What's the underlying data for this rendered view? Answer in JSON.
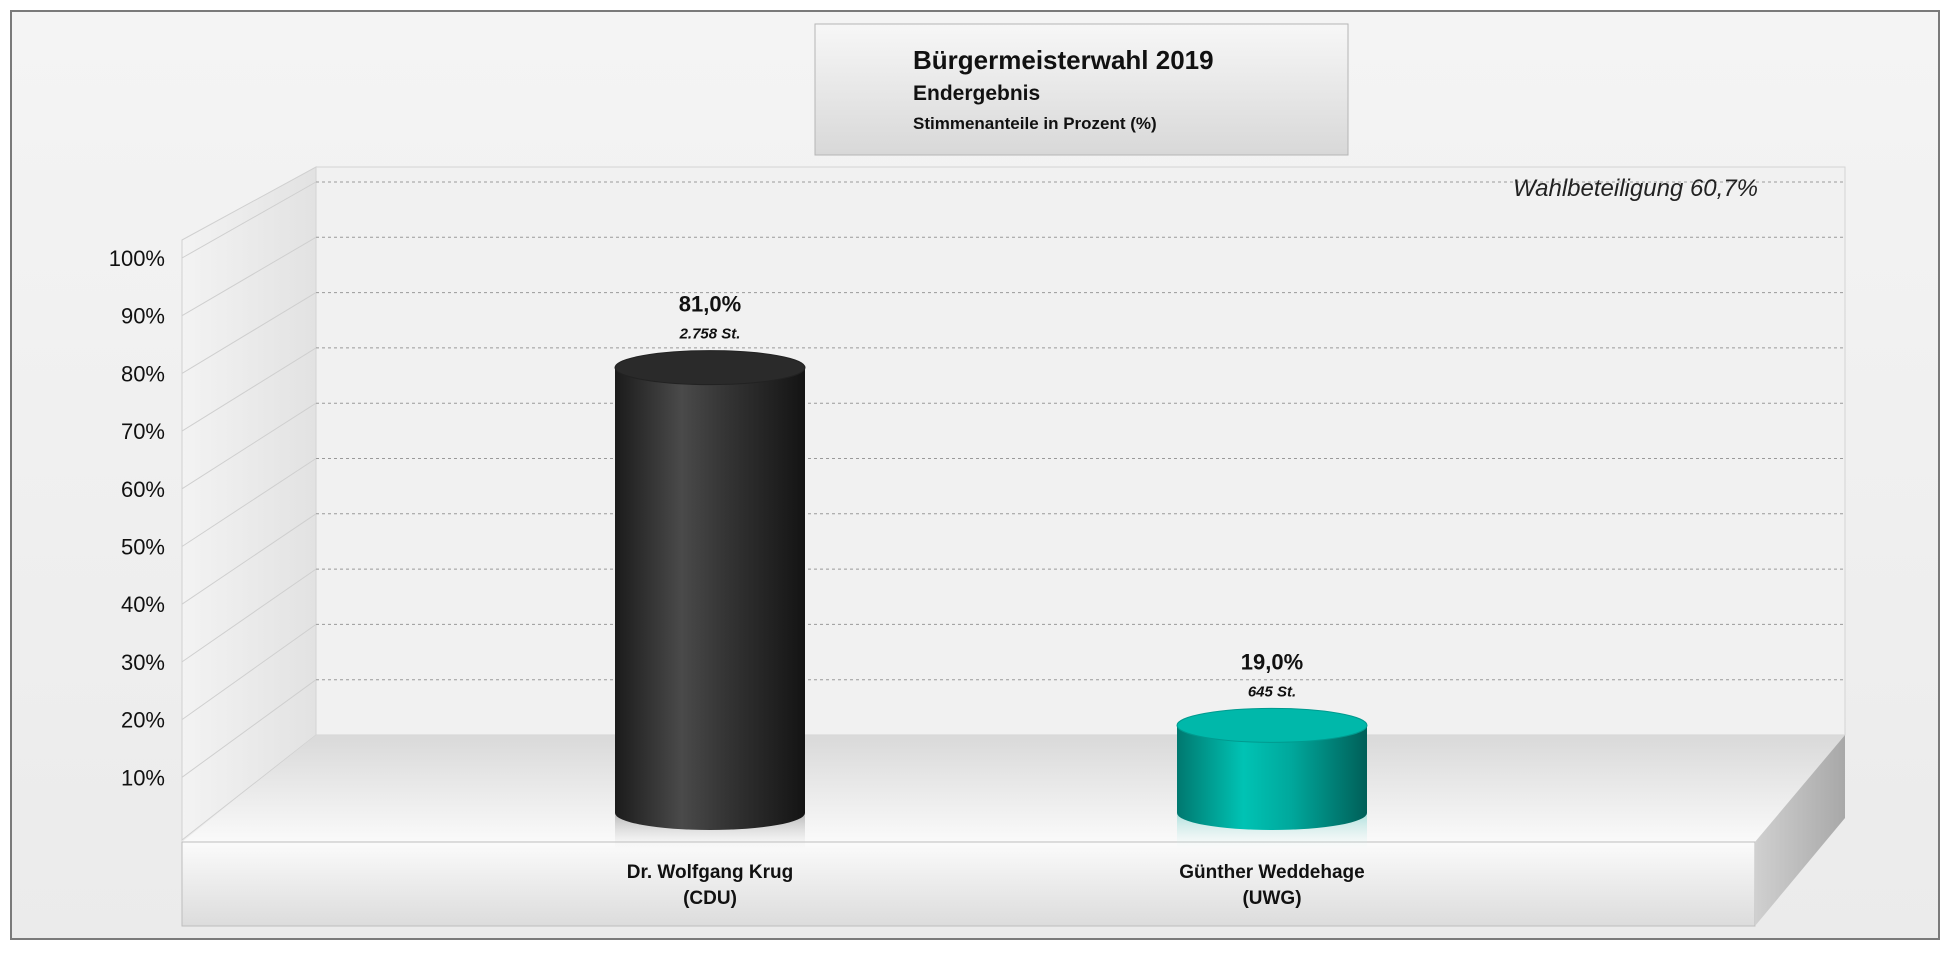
{
  "title": "Bürgermeisterwahl 2019",
  "subtitle": "Endergebnis",
  "subtitle2": "Stimmenanteile in Prozent (%)",
  "annotation": "Wahlbeteiligung 60,7%",
  "chart_data": {
    "type": "bar",
    "title": "Bürgermeisterwahl 2019",
    "subtitle": "Endergebnis",
    "ylabel": "Stimmenanteile in Prozent (%)",
    "ylim": [
      0,
      100
    ],
    "yticks": [
      "10%",
      "20%",
      "30%",
      "40%",
      "50%",
      "60%",
      "70%",
      "80%",
      "90%",
      "100%"
    ],
    "grid": true,
    "categories": [
      {
        "line1": "Dr. Wolfgang Krug",
        "line2": "(CDU)"
      },
      {
        "line1": "Günther Weddehage",
        "line2": "(UWG)"
      }
    ],
    "values": [
      81.0,
      19.0
    ],
    "value_labels": [
      "81,0%",
      "19,0%"
    ],
    "votes_labels": [
      "2.758 St.",
      "645 St."
    ],
    "colors": [
      "#333333",
      "#00a89c"
    ],
    "annotations": [
      "Wahlbeteiligung 60,7%"
    ]
  }
}
